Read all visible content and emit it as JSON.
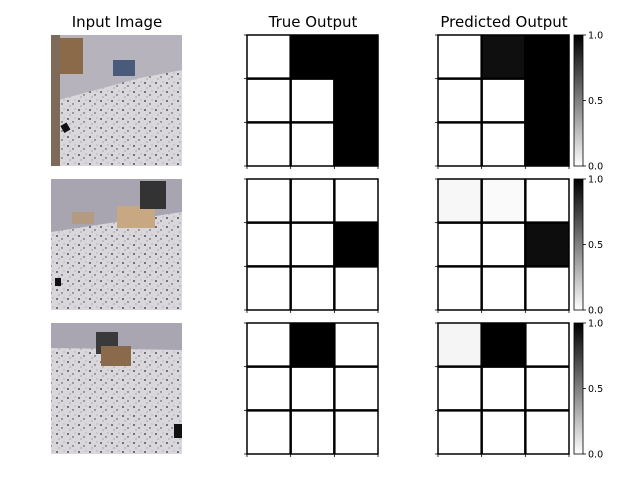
{
  "chart_data": {
    "type": "heatmap",
    "column_titles": [
      "Input Image",
      "True Output",
      "Predicted Output"
    ],
    "grid_size": [
      3,
      3
    ],
    "colormap": "gray_r",
    "value_range": [
      0,
      1
    ],
    "colorbar_ticks": [
      "1.0",
      "0.5",
      "0.0"
    ],
    "rows": [
      {
        "true_output": [
          [
            0,
            1,
            1
          ],
          [
            0,
            0,
            1
          ],
          [
            0,
            0,
            1
          ]
        ],
        "predicted_output": [
          [
            0.0,
            0.94,
            1.0
          ],
          [
            0.0,
            0.0,
            1.0
          ],
          [
            0.0,
            0.0,
            1.0
          ]
        ]
      },
      {
        "true_output": [
          [
            0,
            0,
            0
          ],
          [
            0,
            0,
            1
          ],
          [
            0,
            0,
            0
          ]
        ],
        "predicted_output": [
          [
            0.03,
            0.02,
            0.0
          ],
          [
            0.0,
            0.0,
            0.95
          ],
          [
            0.0,
            0.0,
            0.0
          ]
        ]
      },
      {
        "true_output": [
          [
            0,
            1,
            0
          ],
          [
            0,
            0,
            0
          ],
          [
            0,
            0,
            0
          ]
        ],
        "predicted_output": [
          [
            0.04,
            1.0,
            0.0
          ],
          [
            0.0,
            0.0,
            0.0
          ],
          [
            0.0,
            0.0,
            0.0
          ]
        ]
      }
    ]
  },
  "colors": {
    "background": "#ffffff",
    "grid_line": "#000000",
    "floor": "#c9c7cc",
    "wall": "#b8b4c0"
  }
}
